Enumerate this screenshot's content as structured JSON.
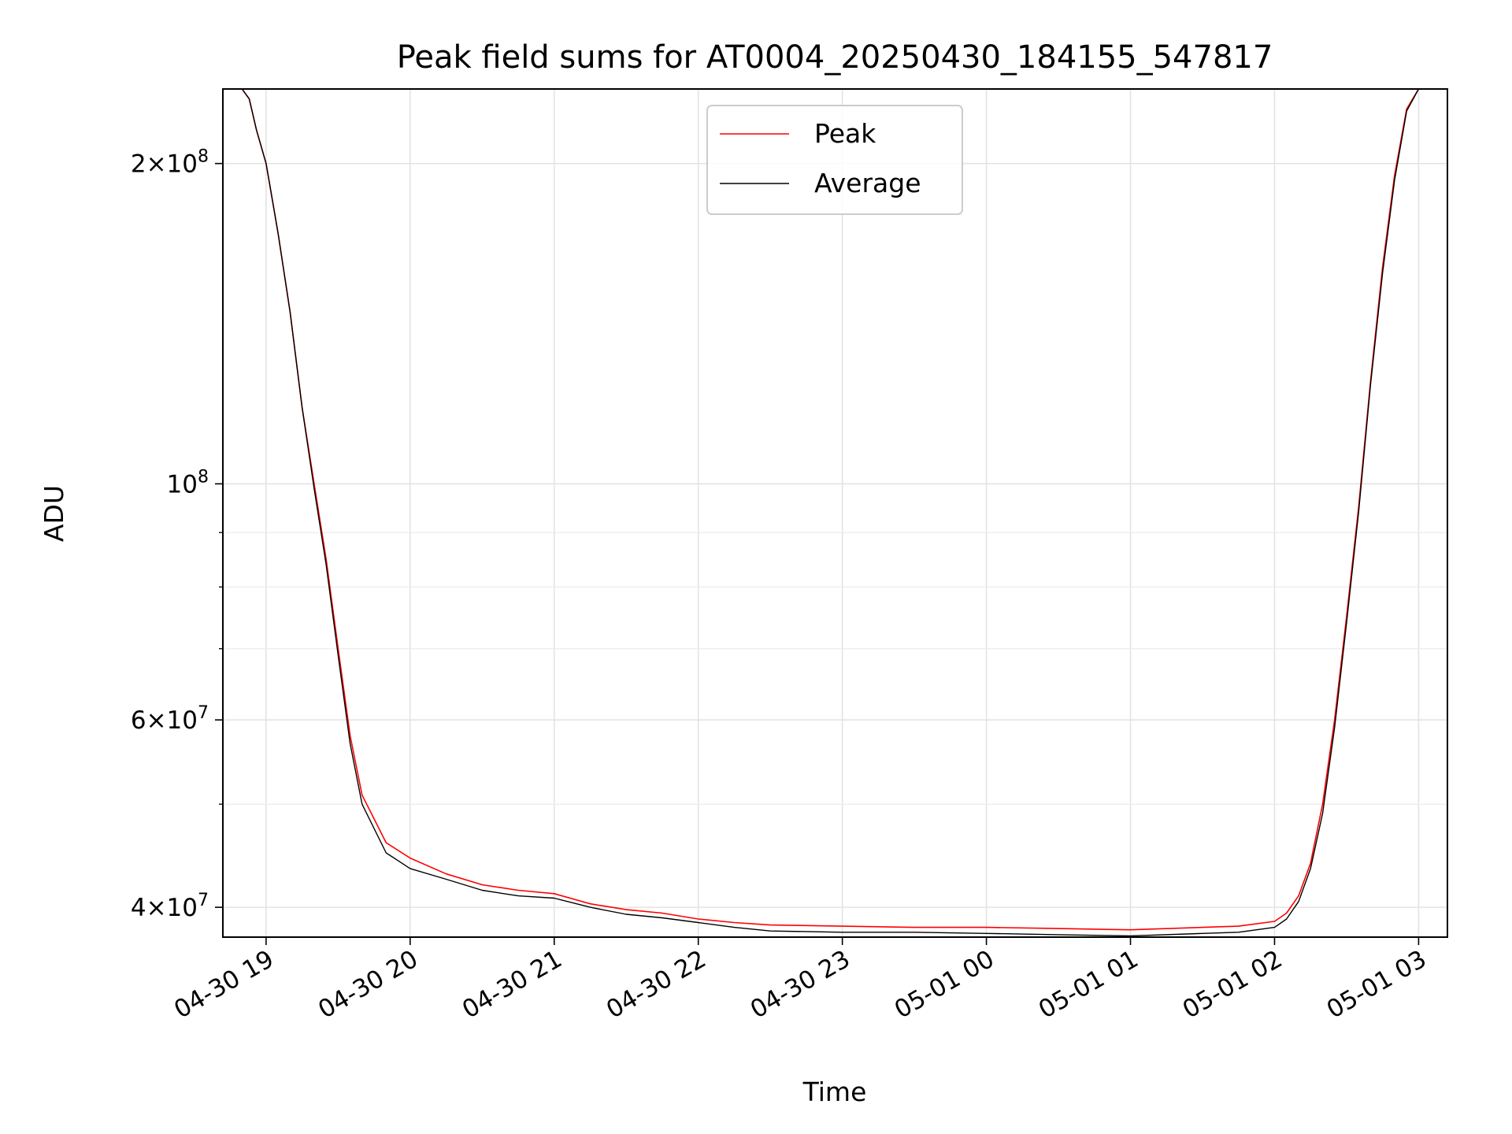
{
  "chart_data": {
    "type": "line",
    "title": "Peak field sums for AT0004_20250430_184155_547817",
    "xlabel": "Time",
    "ylabel": "ADU",
    "x_scale": "time",
    "y_scale": "log",
    "xlim": [
      "2025-04-30 18:42",
      "2025-05-01 03:12"
    ],
    "ylim": [
      37500000,
      235000000
    ],
    "x_ticks": [
      {
        "t": "2025-04-30 19:00",
        "label": "04-30 19"
      },
      {
        "t": "2025-04-30 20:00",
        "label": "04-30 20"
      },
      {
        "t": "2025-04-30 21:00",
        "label": "04-30 21"
      },
      {
        "t": "2025-04-30 22:00",
        "label": "04-30 22"
      },
      {
        "t": "2025-04-30 23:00",
        "label": "04-30 23"
      },
      {
        "t": "2025-05-01 00:00",
        "label": "05-01 00"
      },
      {
        "t": "2025-05-01 01:00",
        "label": "05-01 01"
      },
      {
        "t": "2025-05-01 02:00",
        "label": "05-01 02"
      },
      {
        "t": "2025-05-01 03:00",
        "label": "05-01 03"
      }
    ],
    "y_major_ticks": [
      {
        "v": 40000000,
        "base": "4×10",
        "exp": "7"
      },
      {
        "v": 60000000,
        "base": "6×10",
        "exp": "7"
      },
      {
        "v": 100000000,
        "base": "10",
        "exp": "8"
      },
      {
        "v": 200000000,
        "base": "2×10",
        "exp": "8"
      }
    ],
    "y_minor_ticks": [
      50000000,
      70000000,
      80000000,
      90000000
    ],
    "grid": true,
    "legend_position": "top-center",
    "series": [
      {
        "name": "Peak",
        "color": "#ff0000",
        "x": [
          "2025-04-30 18:42",
          "2025-04-30 18:50",
          "2025-04-30 18:53",
          "2025-04-30 18:56",
          "2025-04-30 19:00",
          "2025-04-30 19:05",
          "2025-04-30 19:10",
          "2025-04-30 19:15",
          "2025-04-30 19:20",
          "2025-04-30 19:25",
          "2025-04-30 19:30",
          "2025-04-30 19:35",
          "2025-04-30 19:40",
          "2025-04-30 19:50",
          "2025-04-30 20:00",
          "2025-04-30 20:15",
          "2025-04-30 20:30",
          "2025-04-30 20:45",
          "2025-04-30 21:00",
          "2025-04-30 21:15",
          "2025-04-30 21:30",
          "2025-04-30 21:45",
          "2025-04-30 22:00",
          "2025-04-30 22:15",
          "2025-04-30 22:30",
          "2025-04-30 23:00",
          "2025-04-30 23:30",
          "2025-05-01 00:00",
          "2025-05-01 00:30",
          "2025-05-01 01:00",
          "2025-05-01 01:30",
          "2025-05-01 01:45",
          "2025-05-01 02:00",
          "2025-05-01 02:05",
          "2025-05-01 02:10",
          "2025-05-01 02:15",
          "2025-05-01 02:20",
          "2025-05-01 02:25",
          "2025-05-01 02:30",
          "2025-05-01 02:35",
          "2025-05-01 02:40",
          "2025-05-01 02:45",
          "2025-05-01 02:50",
          "2025-05-01 02:55",
          "2025-05-01 03:00",
          "2025-05-01 03:12"
        ],
        "y": [
          235000000,
          235000000,
          230000000,
          215000000,
          200000000,
          172000000,
          145000000,
          118000000,
          100000000,
          85000000,
          70000000,
          58000000,
          51000000,
          46000000,
          44500000,
          43000000,
          42000000,
          41500000,
          41200000,
          40300000,
          39800000,
          39500000,
          39000000,
          38700000,
          38500000,
          38400000,
          38300000,
          38300000,
          38200000,
          38100000,
          38300000,
          38400000,
          38800000,
          39500000,
          41000000,
          44000000,
          50000000,
          60000000,
          75000000,
          95000000,
          125000000,
          160000000,
          195000000,
          225000000,
          235000000,
          235000000
        ]
      },
      {
        "name": "Average",
        "color": "#000000",
        "x": [
          "2025-04-30 18:42",
          "2025-04-30 18:50",
          "2025-04-30 18:53",
          "2025-04-30 18:56",
          "2025-04-30 19:00",
          "2025-04-30 19:05",
          "2025-04-30 19:10",
          "2025-04-30 19:15",
          "2025-04-30 19:20",
          "2025-04-30 19:25",
          "2025-04-30 19:30",
          "2025-04-30 19:35",
          "2025-04-30 19:40",
          "2025-04-30 19:50",
          "2025-04-30 20:00",
          "2025-04-30 20:15",
          "2025-04-30 20:30",
          "2025-04-30 20:45",
          "2025-04-30 21:00",
          "2025-04-30 21:15",
          "2025-04-30 21:30",
          "2025-04-30 21:45",
          "2025-04-30 22:00",
          "2025-04-30 22:15",
          "2025-04-30 22:30",
          "2025-04-30 23:00",
          "2025-04-30 23:30",
          "2025-05-01 00:00",
          "2025-05-01 00:30",
          "2025-05-01 01:00",
          "2025-05-01 01:30",
          "2025-05-01 01:45",
          "2025-05-01 02:00",
          "2025-05-01 02:05",
          "2025-05-01 02:10",
          "2025-05-01 02:15",
          "2025-05-01 02:20",
          "2025-05-01 02:25",
          "2025-05-01 02:30",
          "2025-05-01 02:35",
          "2025-05-01 02:40",
          "2025-05-01 02:45",
          "2025-05-01 02:50",
          "2025-05-01 02:55",
          "2025-05-01 03:00",
          "2025-05-01 03:12"
        ],
        "y": [
          235000000,
          235000000,
          230000000,
          215000000,
          200000000,
          172000000,
          145000000,
          118000000,
          99000000,
          84000000,
          69000000,
          57000000,
          50000000,
          45000000,
          43500000,
          42500000,
          41500000,
          41000000,
          40800000,
          40000000,
          39400000,
          39100000,
          38700000,
          38300000,
          38000000,
          37900000,
          37900000,
          37800000,
          37700000,
          37600000,
          37800000,
          37900000,
          38300000,
          39000000,
          40500000,
          43500000,
          49000000,
          59000000,
          74000000,
          94000000,
          124000000,
          158000000,
          193000000,
          224000000,
          235000000,
          235000000
        ]
      }
    ]
  }
}
